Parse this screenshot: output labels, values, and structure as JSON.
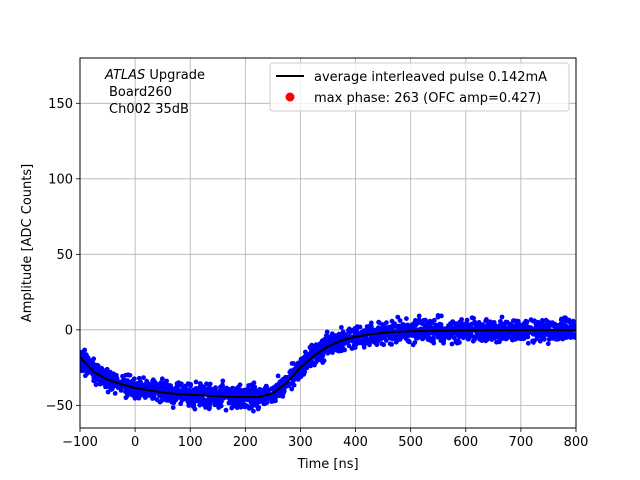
{
  "chart_data": {
    "type": "scatter",
    "xlabel": "Time [ns]",
    "ylabel": "Amplitude [ADC Counts]",
    "xlim": [
      -100,
      800
    ],
    "ylim": [
      -65,
      180
    ],
    "xticks": [
      -100,
      0,
      100,
      200,
      300,
      400,
      500,
      600,
      700,
      800
    ],
    "yticks": [
      -50,
      0,
      50,
      100,
      150
    ],
    "grid": true,
    "legend_position": "top-right",
    "annotation": {
      "line1_italic": "ATLAS",
      "line1_rest": " Upgrade",
      "line2": "Board260",
      "line3": "Ch002 35dB"
    },
    "colors": {
      "scatter": "#0000ff",
      "average_line": "#000000",
      "max_point": "#ff0000",
      "grid": "#b0b0b0"
    },
    "series": [
      {
        "name": "average interleaved pulse 0.142mA",
        "kind": "line",
        "x": [
          -100,
          -75,
          -50,
          -25,
          0,
          25,
          50,
          75,
          100,
          125,
          150,
          175,
          200,
          225,
          250,
          275,
          300,
          325,
          350,
          375,
          400,
          425,
          450,
          475,
          500,
          550,
          600,
          650,
          700,
          750,
          800
        ],
        "y": [
          -18,
          -28,
          -33,
          -36,
          -38.5,
          -40,
          -41.5,
          -42.5,
          -43,
          -43.5,
          -44,
          -44.5,
          -44.5,
          -44.5,
          -42,
          -35,
          -25,
          -17,
          -11,
          -7,
          -4.5,
          -3,
          -2,
          -1.3,
          -1,
          -0.6,
          -0.4,
          -0.3,
          -0.2,
          -0.1,
          -0.2
        ]
      },
      {
        "name": "max phase: 263 (OFC amp=0.427)",
        "kind": "point",
        "x": [],
        "y": []
      }
    ],
    "scatter_spread": 4
  }
}
